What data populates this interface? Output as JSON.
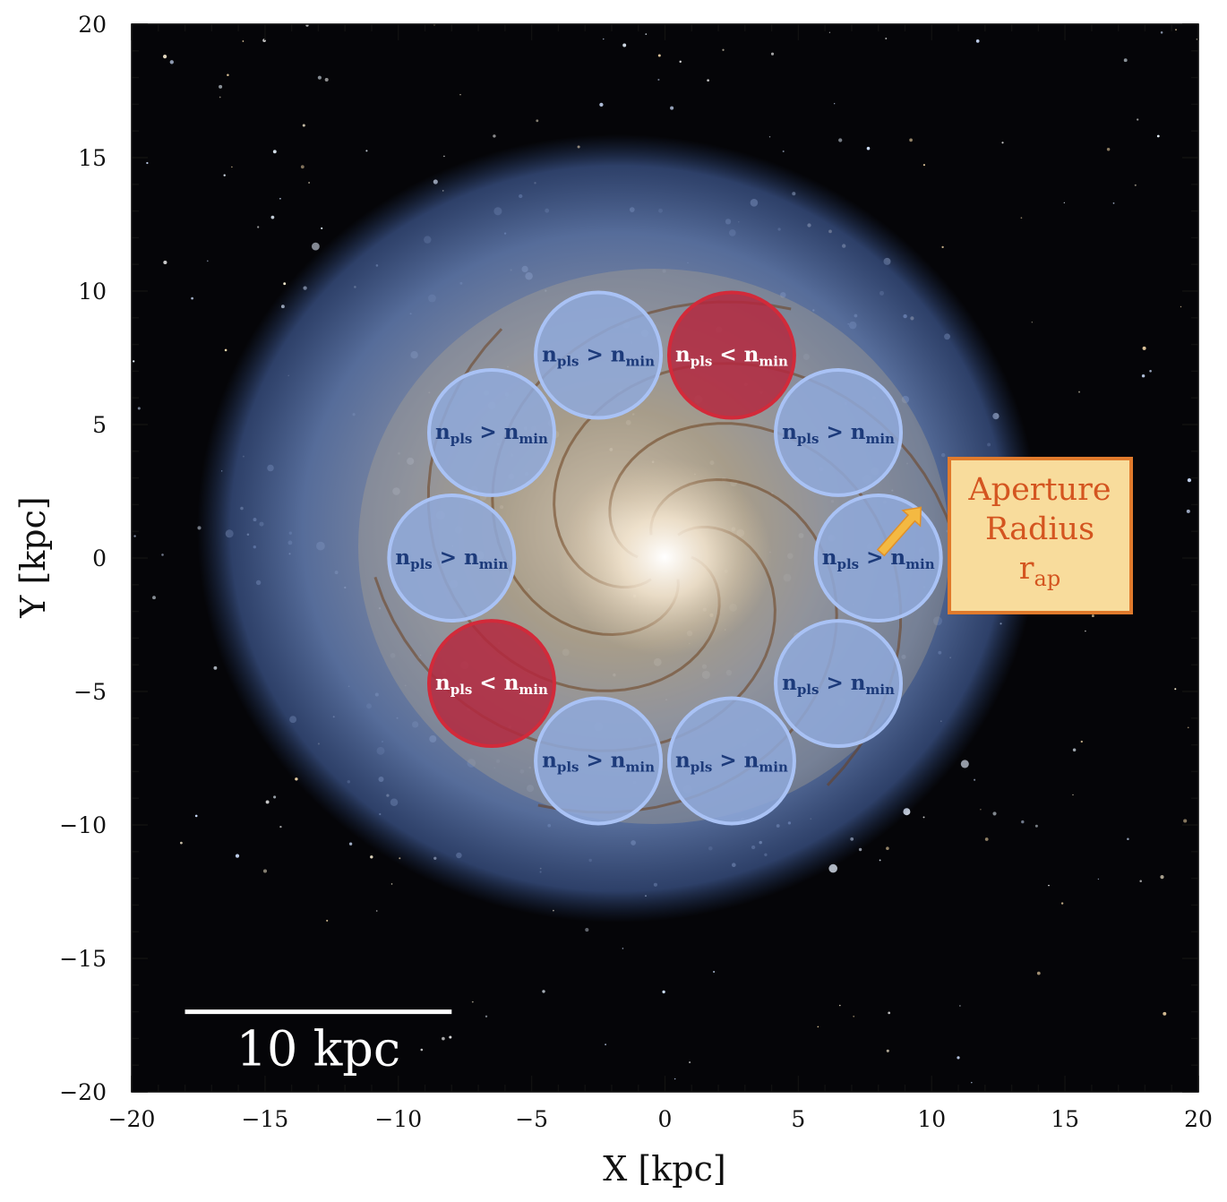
{
  "axes": {
    "x_label": "X [kpc]",
    "y_label": "Y [kpc]",
    "x_range": [
      -20,
      20
    ],
    "y_range": [
      -20,
      20
    ],
    "x_major_ticks": [
      -20,
      -15,
      -10,
      -5,
      0,
      5,
      10,
      15,
      20
    ],
    "y_major_ticks": [
      -20,
      -15,
      -10,
      -5,
      0,
      5,
      10,
      15,
      20
    ],
    "x_tick_labels": [
      "−20",
      "−15",
      "−10",
      "−5",
      "0",
      "5",
      "10",
      "15",
      "20"
    ],
    "y_tick_labels": [
      "−20",
      "−15",
      "−10",
      "−5",
      "0",
      "5",
      "10",
      "15",
      "20"
    ]
  },
  "scale_bar": {
    "label": "10 kpc",
    "length_kpc": 10,
    "x_start": -18,
    "x_end": -8,
    "y": -17
  },
  "aperture_radius_kpc": 2.35,
  "apertures": [
    {
      "x": -2.5,
      "y": 7.6,
      "status": "pass",
      "n_sym": "n",
      "n_sub": "pls",
      "op": ">",
      "min_sym": "n",
      "min_sub": "min"
    },
    {
      "x": 2.5,
      "y": 7.6,
      "status": "fail",
      "n_sym": "n",
      "n_sub": "pls",
      "op": "<",
      "min_sym": "n",
      "min_sub": "min"
    },
    {
      "x": 6.5,
      "y": 4.7,
      "status": "pass",
      "n_sym": "n",
      "n_sub": "pls",
      "op": ">",
      "min_sym": "n",
      "min_sub": "min"
    },
    {
      "x": 8.0,
      "y": 0.0,
      "status": "pass",
      "n_sym": "n",
      "n_sub": "pls",
      "op": ">",
      "min_sym": "n",
      "min_sub": "min"
    },
    {
      "x": 6.5,
      "y": -4.7,
      "status": "pass",
      "n_sym": "n",
      "n_sub": "pls",
      "op": ">",
      "min_sym": "n",
      "min_sub": "min"
    },
    {
      "x": 2.5,
      "y": -7.6,
      "status": "pass",
      "n_sym": "n",
      "n_sub": "pls",
      "op": ">",
      "min_sym": "n",
      "min_sub": "min"
    },
    {
      "x": -2.5,
      "y": -7.6,
      "status": "pass",
      "n_sym": "n",
      "n_sub": "pls",
      "op": ">",
      "min_sym": "n",
      "min_sub": "min"
    },
    {
      "x": -6.5,
      "y": -4.7,
      "status": "fail",
      "n_sym": "n",
      "n_sub": "pls",
      "op": "<",
      "min_sym": "n",
      "min_sub": "min"
    },
    {
      "x": -8.0,
      "y": 0.0,
      "status": "pass",
      "n_sym": "n",
      "n_sub": "pls",
      "op": ">",
      "min_sym": "n",
      "min_sub": "min"
    },
    {
      "x": -6.5,
      "y": 4.7,
      "status": "pass",
      "n_sym": "n",
      "n_sub": "pls",
      "op": ">",
      "min_sym": "n",
      "min_sub": "min"
    }
  ],
  "annotation": {
    "line1": "Aperture",
    "line2": "Radius",
    "sym": "r",
    "sub": "ap",
    "arrow_tip": {
      "x": 9.6,
      "y": 1.9
    },
    "arrow_tail": {
      "x": 8.1,
      "y": 0.2
    }
  },
  "colors": {
    "pass_fill": "#8fa9da",
    "pass_stroke": "#a9c2f5",
    "pass_text": "#1c3a7a",
    "fail_fill": "#b4283e",
    "fail_stroke": "#d22a3a",
    "fail_text": "#ffffff",
    "box_fill": "#f8dc9c",
    "box_stroke": "#e07a2c",
    "box_text": "#d45520",
    "arrow_fill": "#f4b942",
    "arrow_stroke": "#e0902a",
    "background": "#050508"
  }
}
